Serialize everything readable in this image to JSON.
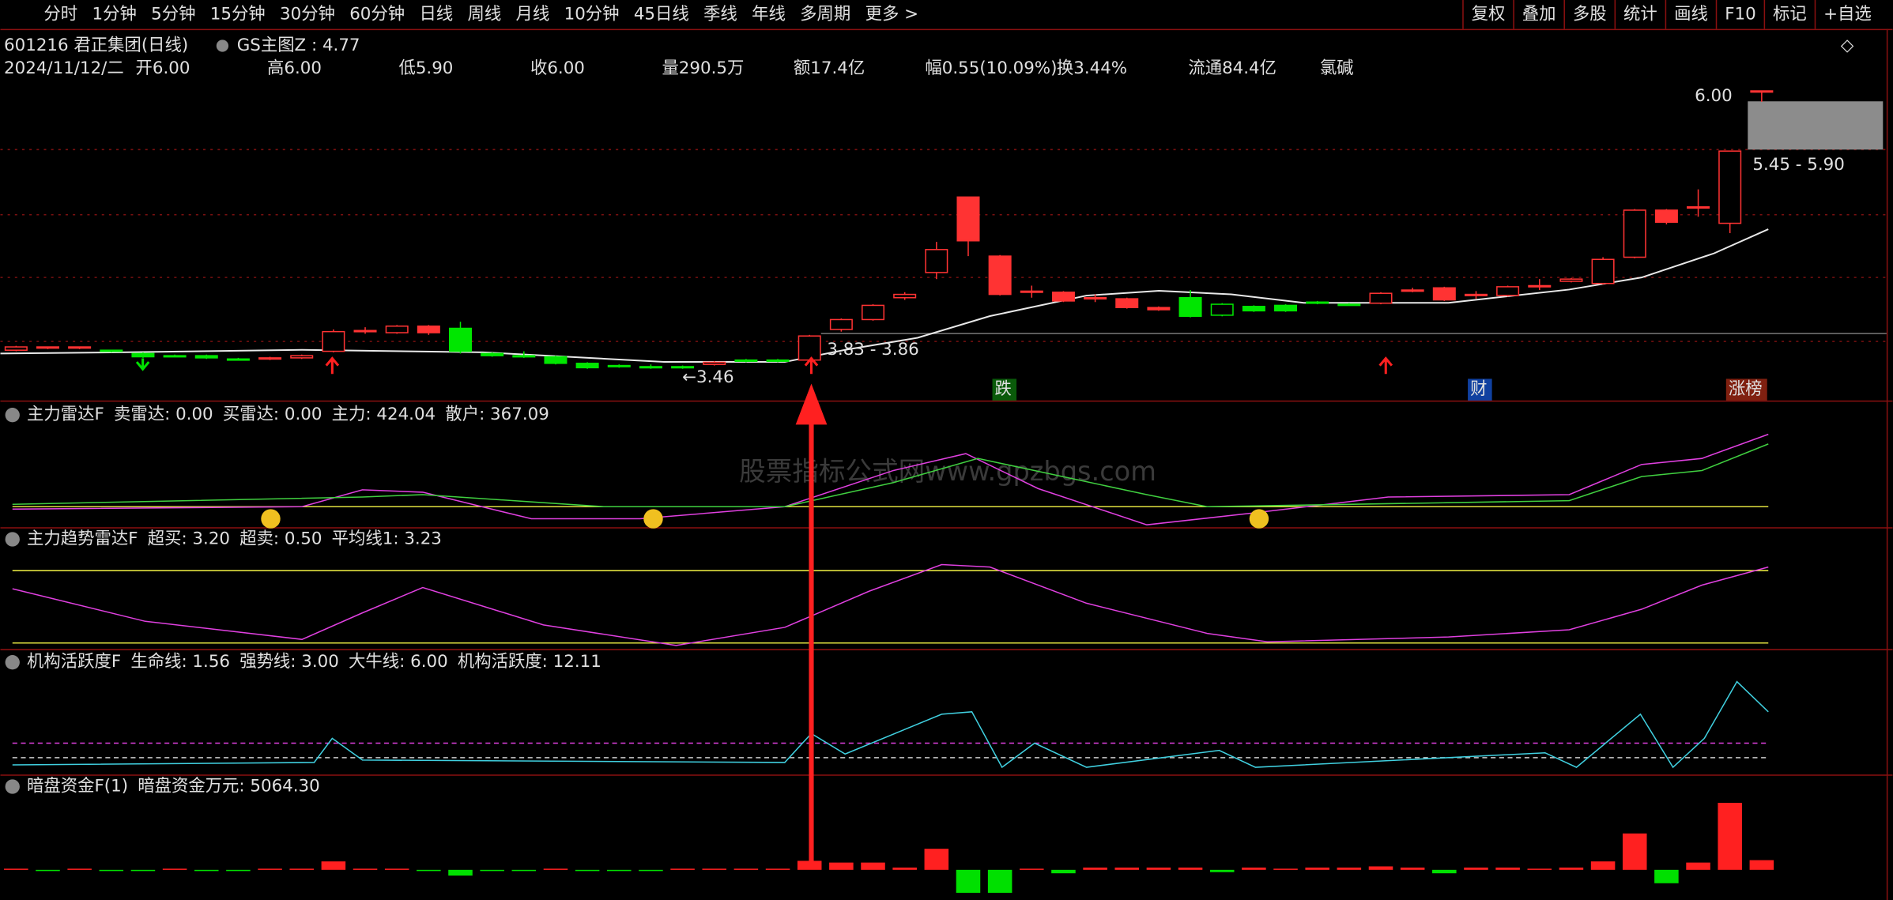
{
  "toolbar": {
    "periods": [
      "分时",
      "1分钟",
      "5分钟",
      "15分钟",
      "30分钟",
      "60分钟",
      "日线",
      "周线",
      "月线",
      "10分钟",
      "45日线",
      "季线",
      "年线",
      "多周期",
      "更多 >"
    ],
    "active": "日线",
    "buttons": [
      "复权",
      "叠加",
      "多股",
      "统计",
      "画线",
      "F10",
      "标记",
      "+自选"
    ]
  },
  "header": {
    "symbol": "601216 君正集团(日线)",
    "indicator": "GS主图Z : 4.77",
    "quote": [
      {
        "text": "2024/11/12/二",
        "color": "#e0e0e0"
      },
      {
        "text": "开6.00",
        "color": "#ff4040"
      },
      {
        "text": "高6.00",
        "color": "#ff4040"
      },
      {
        "text": "低5.90",
        "color": "#ff4040"
      },
      {
        "text": "收6.00",
        "color": "#ff4040"
      },
      {
        "text": "量290.5万",
        "color": "#ffff40"
      },
      {
        "text": "额17.4亿",
        "color": "#e0e0e0"
      },
      {
        "text": "幅0.55(10.09%)",
        "color": "#ff4040"
      },
      {
        "text": "换3.44%",
        "color": "#e0e0e0"
      },
      {
        "text": "流通84.4亿",
        "color": "#e0e0e0"
      },
      {
        "text": "氯碱",
        "color": "#e8d040"
      }
    ]
  },
  "main_chart": {
    "type": "candlestick",
    "open": [
      3.63,
      3.65,
      3.65,
      3.63,
      3.6,
      3.58,
      3.58,
      3.55,
      3.55,
      3.56,
      3.62,
      3.8,
      3.79,
      3.85,
      3.83,
      3.6,
      3.58,
      3.57,
      3.51,
      3.49,
      3.48,
      3.48,
      3.5,
      3.54,
      3.54,
      3.54,
      3.82,
      3.91,
      4.11,
      4.34,
      5.03,
      4.49,
      4.17,
      4.16,
      4.11,
      4.1,
      4.02,
      4.11,
      3.95,
      4.03,
      4.04,
      4.07,
      4.05,
      4.06,
      4.17,
      4.2,
      4.14,
      4.13,
      4.21,
      4.26,
      4.24,
      4.48,
      4.91,
      4.93,
      4.79,
      6.0
    ],
    "high": [
      3.67,
      3.66,
      3.66,
      3.63,
      3.61,
      3.59,
      3.59,
      3.56,
      3.57,
      3.59,
      3.82,
      3.84,
      3.86,
      3.86,
      3.89,
      3.61,
      3.62,
      3.58,
      3.52,
      3.5,
      3.5,
      3.49,
      3.53,
      3.55,
      3.55,
      3.77,
      3.92,
      4.05,
      4.16,
      4.62,
      5.03,
      4.5,
      4.22,
      4.17,
      4.14,
      4.11,
      4.03,
      4.18,
      4.06,
      4.04,
      4.05,
      4.08,
      4.06,
      4.16,
      4.2,
      4.21,
      4.17,
      4.22,
      4.28,
      4.29,
      4.48,
      4.92,
      4.92,
      5.1,
      5.45,
      6.0
    ],
    "low": [
      3.62,
      3.64,
      3.64,
      3.61,
      3.56,
      3.57,
      3.55,
      3.54,
      3.54,
      3.55,
      3.61,
      3.78,
      3.78,
      3.77,
      3.6,
      3.57,
      3.56,
      3.5,
      3.46,
      3.47,
      3.46,
      3.46,
      3.49,
      3.52,
      3.52,
      3.53,
      3.8,
      3.9,
      4.09,
      4.28,
      4.49,
      4.13,
      4.11,
      4.07,
      4.07,
      4.01,
      3.99,
      3.93,
      3.94,
      3.98,
      3.98,
      4.05,
      4.04,
      4.05,
      4.16,
      4.08,
      4.1,
      4.12,
      4.18,
      4.25,
      4.23,
      4.47,
      4.78,
      4.85,
      4.7,
      5.9
    ],
    "close": [
      3.66,
      3.66,
      3.66,
      3.62,
      3.57,
      3.58,
      3.56,
      3.55,
      3.56,
      3.58,
      3.8,
      3.81,
      3.85,
      3.79,
      3.62,
      3.58,
      3.57,
      3.51,
      3.47,
      3.48,
      3.48,
      3.47,
      3.52,
      3.53,
      3.53,
      3.76,
      3.91,
      4.04,
      4.14,
      4.55,
      4.63,
      4.14,
      4.16,
      4.08,
      4.1,
      4.02,
      4.0,
      3.94,
      4.05,
      3.99,
      3.99,
      4.06,
      4.05,
      4.15,
      4.18,
      4.09,
      4.13,
      4.21,
      4.22,
      4.28,
      4.46,
      4.91,
      4.8,
      4.94,
      5.45,
      6.0
    ],
    "colors": [
      "#ff3333",
      "#ff3333",
      "#ff3333",
      "#00e600",
      "#00e600",
      "#00e600",
      "#00e600",
      "#00e600",
      "#ff3333",
      "#ff3333",
      "#ff3333",
      "#ff3333",
      "#ff3333",
      "#ff3333",
      "#00e600",
      "#00e600",
      "#00e600",
      "#00e600",
      "#00e600",
      "#00e600",
      "#00e600",
      "#00e600",
      "#ff3333",
      "#00e600",
      "#00e600",
      "#ff3333",
      "#ff3333",
      "#ff3333",
      "#ff3333",
      "#ff3333",
      "#ff3333",
      "#ff3333",
      "#ff3333",
      "#ff3333",
      "#ff3333",
      "#ff3333",
      "#ff3333",
      "#00e600",
      "#00e600",
      "#00e600",
      "#00e600",
      "#00e600",
      "#00e600",
      "#ff3333",
      "#ff3333",
      "#ff3333",
      "#ff3333",
      "#ff3333",
      "#ff3333",
      "#ff3333",
      "#ff3333",
      "#ff3333",
      "#ff3333",
      "#ff3333",
      "#ff3333",
      "#ff3333"
    ],
    "ylim": [
      3.17,
      6.5
    ],
    "labels": {
      "top": "6.00",
      "range_high": "5.45 - 5.90",
      "range_mid": "3.83 - 3.86",
      "low": "←3.46"
    },
    "events": [
      "跌",
      "财",
      "涨榜"
    ]
  },
  "panels": [
    {
      "name": "主力雷达F",
      "fields": [
        {
          "text": "卖雷达: 0.00",
          "color": "#e0e0e0"
        },
        {
          "text": "买雷达: 0.00",
          "color": "#ffff40"
        },
        {
          "text": "主力: 424.04",
          "color": "#ff40ff"
        },
        {
          "text": "散户: 367.09",
          "color": "#40e040"
        }
      ]
    },
    {
      "name": "主力趋势雷达F",
      "fields": [
        {
          "text": "超买: 3.20",
          "color": "#ffff40"
        },
        {
          "text": "超卖: 0.50",
          "color": "#ffff40"
        },
        {
          "text": "平均线1: 3.23",
          "color": "#ff40ff"
        }
      ]
    },
    {
      "name": "机构活跃度F",
      "fields": [
        {
          "text": "生命线: 1.56",
          "color": "#e0e0e0"
        },
        {
          "text": "强势线: 3.00",
          "color": "#ff4040"
        },
        {
          "text": "大牛线: 6.00",
          "color": "#ff40ff"
        },
        {
          "text": "机构活跃度: 12.11",
          "color": "#40e0e0"
        }
      ]
    },
    {
      "name": "暗盘资金F(1)",
      "fields": [
        {
          "text": "暗盘资金万元: 5064.30",
          "color": "#e0e0e0"
        }
      ]
    }
  ],
  "dark_pool": {
    "type": "bar",
    "values": [
      600,
      -600,
      600,
      -600,
      -600,
      600,
      -600,
      -600,
      600,
      600,
      4400,
      600,
      600,
      -600,
      -3000,
      -600,
      -600,
      600,
      -600,
      -600,
      -600,
      600,
      600,
      600,
      600,
      4700,
      3800,
      3800,
      1200,
      11000,
      -12000,
      -12000,
      600,
      -1800,
      1200,
      1200,
      1200,
      1200,
      -1200,
      1200,
      600,
      1200,
      1200,
      1800,
      1200,
      -1800,
      1200,
      1200,
      600,
      1200,
      4400,
      19000,
      -7000,
      3800,
      35000,
      5064.3
    ],
    "ylim": [
      -15750,
      37170
    ]
  },
  "watermark": "股票指标公式网www.gpzbgs.com"
}
